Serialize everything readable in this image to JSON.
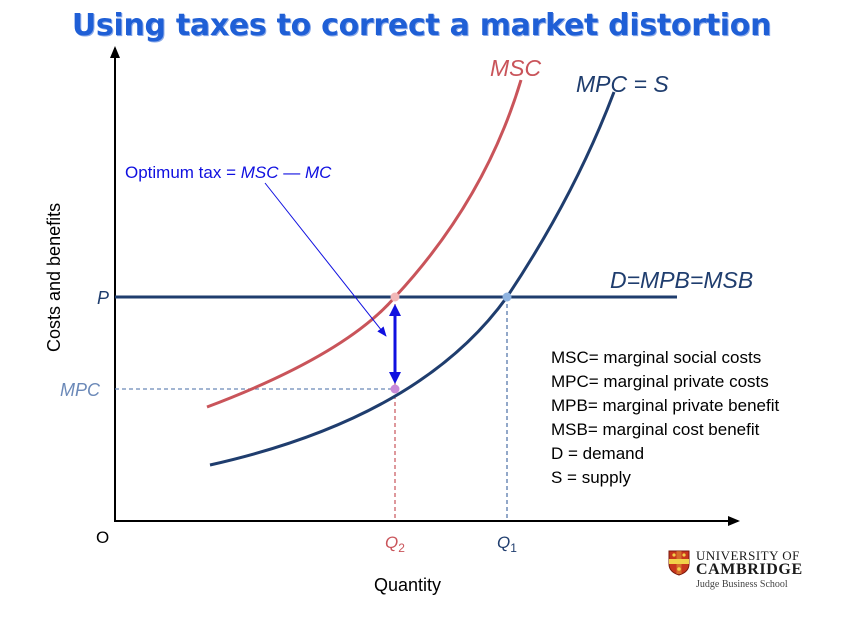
{
  "title": "Using taxes to correct a market distortion",
  "axes": {
    "y_label": "Costs and benefits",
    "x_label": "Quantity",
    "origin": "O"
  },
  "curves": {
    "msc_label": "MSC",
    "mpc_label": "MPC = S",
    "demand_label": "D=MPB=MSB"
  },
  "y_ticks": {
    "p": "P",
    "mpc": "MPC"
  },
  "x_ticks": {
    "q2_main": "Q",
    "q2_sub": "2",
    "q1_main": "Q",
    "q1_sub": "1"
  },
  "annotation": {
    "prefix": "Optimum tax = ",
    "term1": "MSC",
    "minus": " — ",
    "term2": "MC"
  },
  "legend": [
    "MSC= marginal social costs",
    "MPC= marginal private costs",
    "MPB= marginal private benefit",
    "MSB= marginal cost benefit",
    "D = demand",
    "S = supply"
  ],
  "logo": {
    "line1": "UNIVERSITY OF",
    "line2": "CAMBRIDGE",
    "line3": "Judge Business School"
  },
  "colors": {
    "title": "#1f5fd6",
    "msc_curve": "#c9545a",
    "mpc_curve": "#1f3d6e",
    "demand_line": "#1f3d6e",
    "tax_arrow": "#1010e0",
    "annotation": "#1010e0",
    "mpc_tick": "#6b89b8",
    "q2_guide": "#c9545a",
    "q1_guide": "#4a6fa5"
  }
}
